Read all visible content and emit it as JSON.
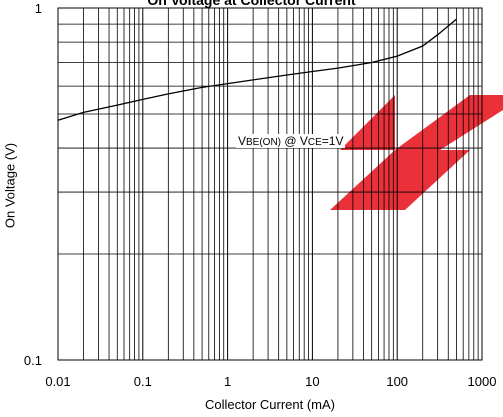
{
  "chart_data": {
    "type": "line",
    "title": "On Voltage at Collector Current",
    "xlabel": "Collector Current (mA)",
    "ylabel": "On Voltage (V)",
    "xscale": "log",
    "yscale": "log",
    "xlim": [
      0.01,
      1000
    ],
    "ylim": [
      0.1,
      1
    ],
    "xticks": [
      "0.01",
      "0.1",
      "1",
      "10",
      "100",
      "1000"
    ],
    "yticks": [
      "0.1",
      "1"
    ],
    "grid": true,
    "annotation": {
      "parts": [
        {
          "text": "V",
          "sub": false
        },
        {
          "text": "BE(ON)",
          "sub": true
        },
        {
          "text": " @ V",
          "sub": false
        },
        {
          "text": "CE",
          "sub": true
        },
        {
          "text": "=1V",
          "sub": false
        }
      ]
    },
    "series": [
      {
        "x": [
          0.01,
          0.02,
          0.05,
          0.1,
          0.2,
          0.5,
          1,
          2,
          5,
          10,
          20,
          50,
          100,
          200,
          300,
          500
        ],
        "y": [
          0.48,
          0.505,
          0.53,
          0.55,
          0.57,
          0.595,
          0.61,
          0.625,
          0.645,
          0.66,
          0.675,
          0.7,
          0.73,
          0.78,
          0.84,
          0.93
        ]
      }
    ],
    "colors": {
      "line": "#000000",
      "grid": "#000000",
      "watermark": "#e81a22"
    }
  }
}
